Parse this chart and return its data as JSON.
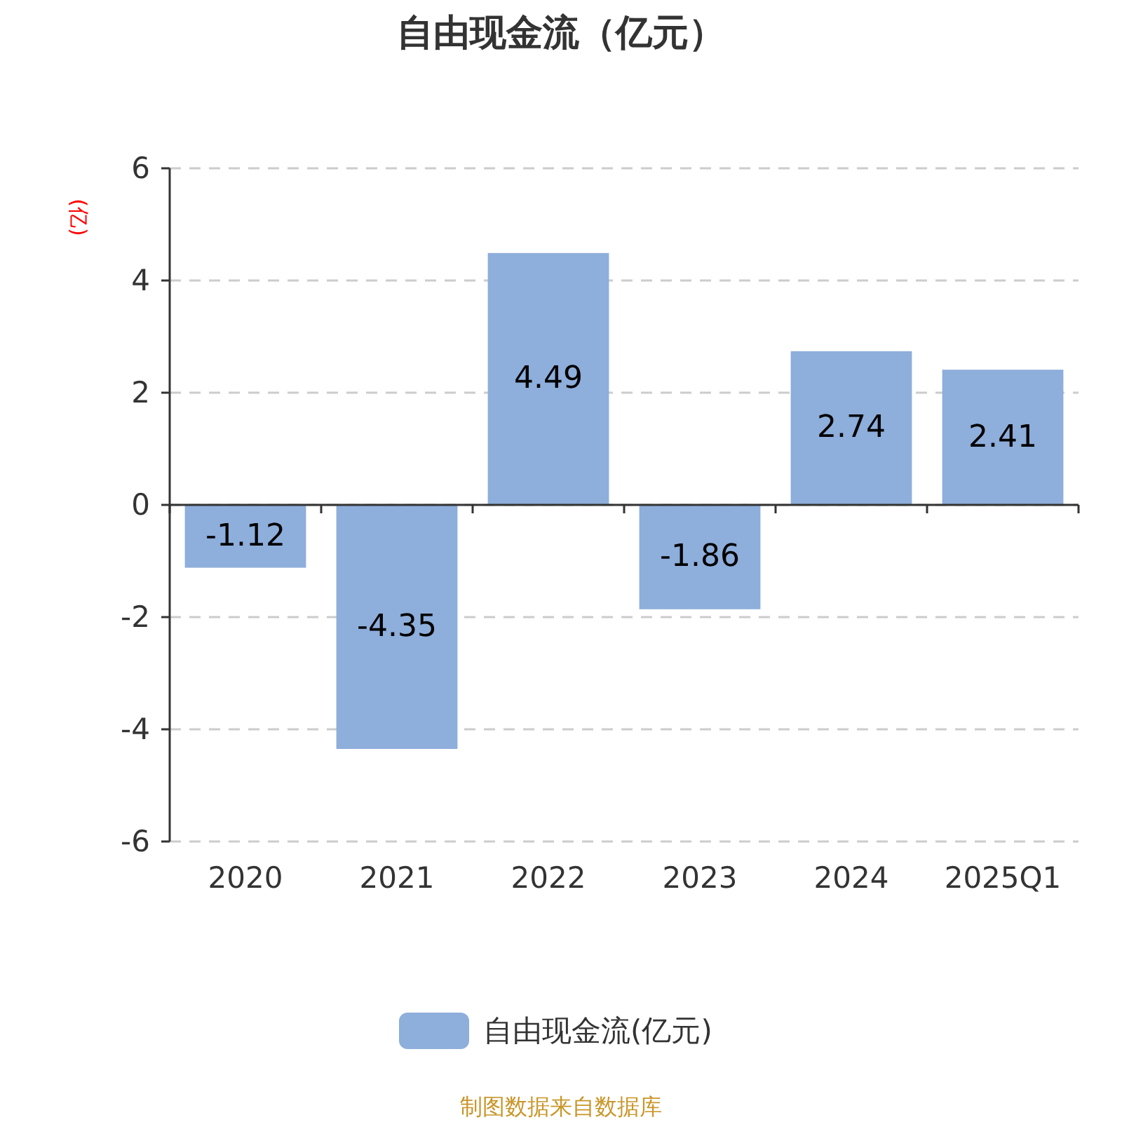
{
  "chart_data": {
    "type": "bar",
    "title": "自由现金流（亿元）",
    "ylabel": "(亿)",
    "categories": [
      "2020",
      "2021",
      "2022",
      "2023",
      "2024",
      "2025Q1"
    ],
    "series": [
      {
        "name": "自由现金流(亿元)",
        "color": "#8eaedb",
        "values": [
          -1.12,
          -4.35,
          4.49,
          -1.86,
          2.74,
          2.41
        ]
      }
    ],
    "ylim": [
      -6,
      6
    ],
    "yticks": [
      -6,
      -4,
      -2,
      0,
      2,
      4,
      6
    ],
    "grid": "y",
    "legend": "bottom",
    "data_labels": true,
    "annotations": [
      "制图数据来自数据库"
    ]
  }
}
